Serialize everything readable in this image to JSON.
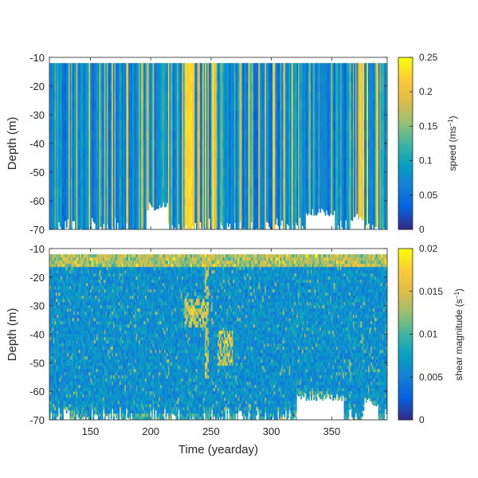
{
  "chart_data": [
    {
      "type": "heatmap",
      "name": "speed-panel",
      "ylabel": "Depth (m)",
      "xlabel": "",
      "xlim": [
        116,
        396
      ],
      "ylim": [
        -70,
        -10
      ],
      "yticks": [
        -10,
        -20,
        -30,
        -40,
        -50,
        -60,
        -70
      ],
      "xticks": [
        150,
        200,
        250,
        300,
        350
      ],
      "show_xtick_labels": false,
      "colorbar": {
        "label_main": "speed (ms",
        "label_sup": "−1",
        "label_end": ")",
        "range": [
          0,
          0.25
        ],
        "ticks": [
          0,
          0.05,
          0.1,
          0.15,
          0.2,
          0.25
        ],
        "tick_labels": [
          "0",
          "0.05",
          "0.1",
          "0.15",
          "0.2",
          "0.25"
        ]
      },
      "colormap": "parula",
      "data_top_depth": -12,
      "bottom_gaps": [
        {
          "x": [
            196,
            214
          ],
          "bottom_depth": -62
        },
        {
          "x": [
            328,
            352
          ],
          "bottom_depth": -64
        },
        {
          "x": [
            366,
            376
          ],
          "bottom_depth": -66
        }
      ],
      "high_speed_bands": [
        [
          226,
          236
        ],
        [
          238,
          252
        ],
        [
          372,
          382
        ],
        [
          386,
          390
        ]
      ]
    },
    {
      "type": "heatmap",
      "name": "shear-panel",
      "ylabel": "Depth (m)",
      "xlabel": "Time (yearday)",
      "xlim": [
        116,
        396
      ],
      "ylim": [
        -70,
        -10
      ],
      "yticks": [
        -10,
        -20,
        -30,
        -40,
        -50,
        -60,
        -70
      ],
      "xticks": [
        150,
        200,
        250,
        300,
        350
      ],
      "show_xtick_labels": true,
      "xtick_labels": [
        "150",
        "200",
        "250",
        "300",
        "350"
      ],
      "colorbar": {
        "label_main": "shear magnitude (s",
        "label_sup": "−1",
        "label_end": ")",
        "range": [
          0,
          0.02
        ],
        "ticks": [
          0,
          0.005,
          0.01,
          0.015,
          0.02
        ],
        "tick_labels": [
          "0",
          "0.005",
          "0.01",
          "0.015",
          "0.02"
        ]
      },
      "colormap": "parula",
      "data_top_depth": -12,
      "high_shear_regions": [
        {
          "x": [
            228,
            244
          ],
          "depth": [
            -27,
            -37
          ]
        },
        {
          "x": [
            255,
            268
          ],
          "depth": [
            -38,
            -50
          ]
        },
        {
          "x": [
            244,
            248
          ],
          "depth": [
            -12,
            -55
          ]
        }
      ],
      "bottom_gaps": [
        {
          "x": [
            320,
            360
          ],
          "bottom_depth": -62
        },
        {
          "x": [
            376,
            388
          ],
          "bottom_depth": -64
        }
      ]
    }
  ]
}
